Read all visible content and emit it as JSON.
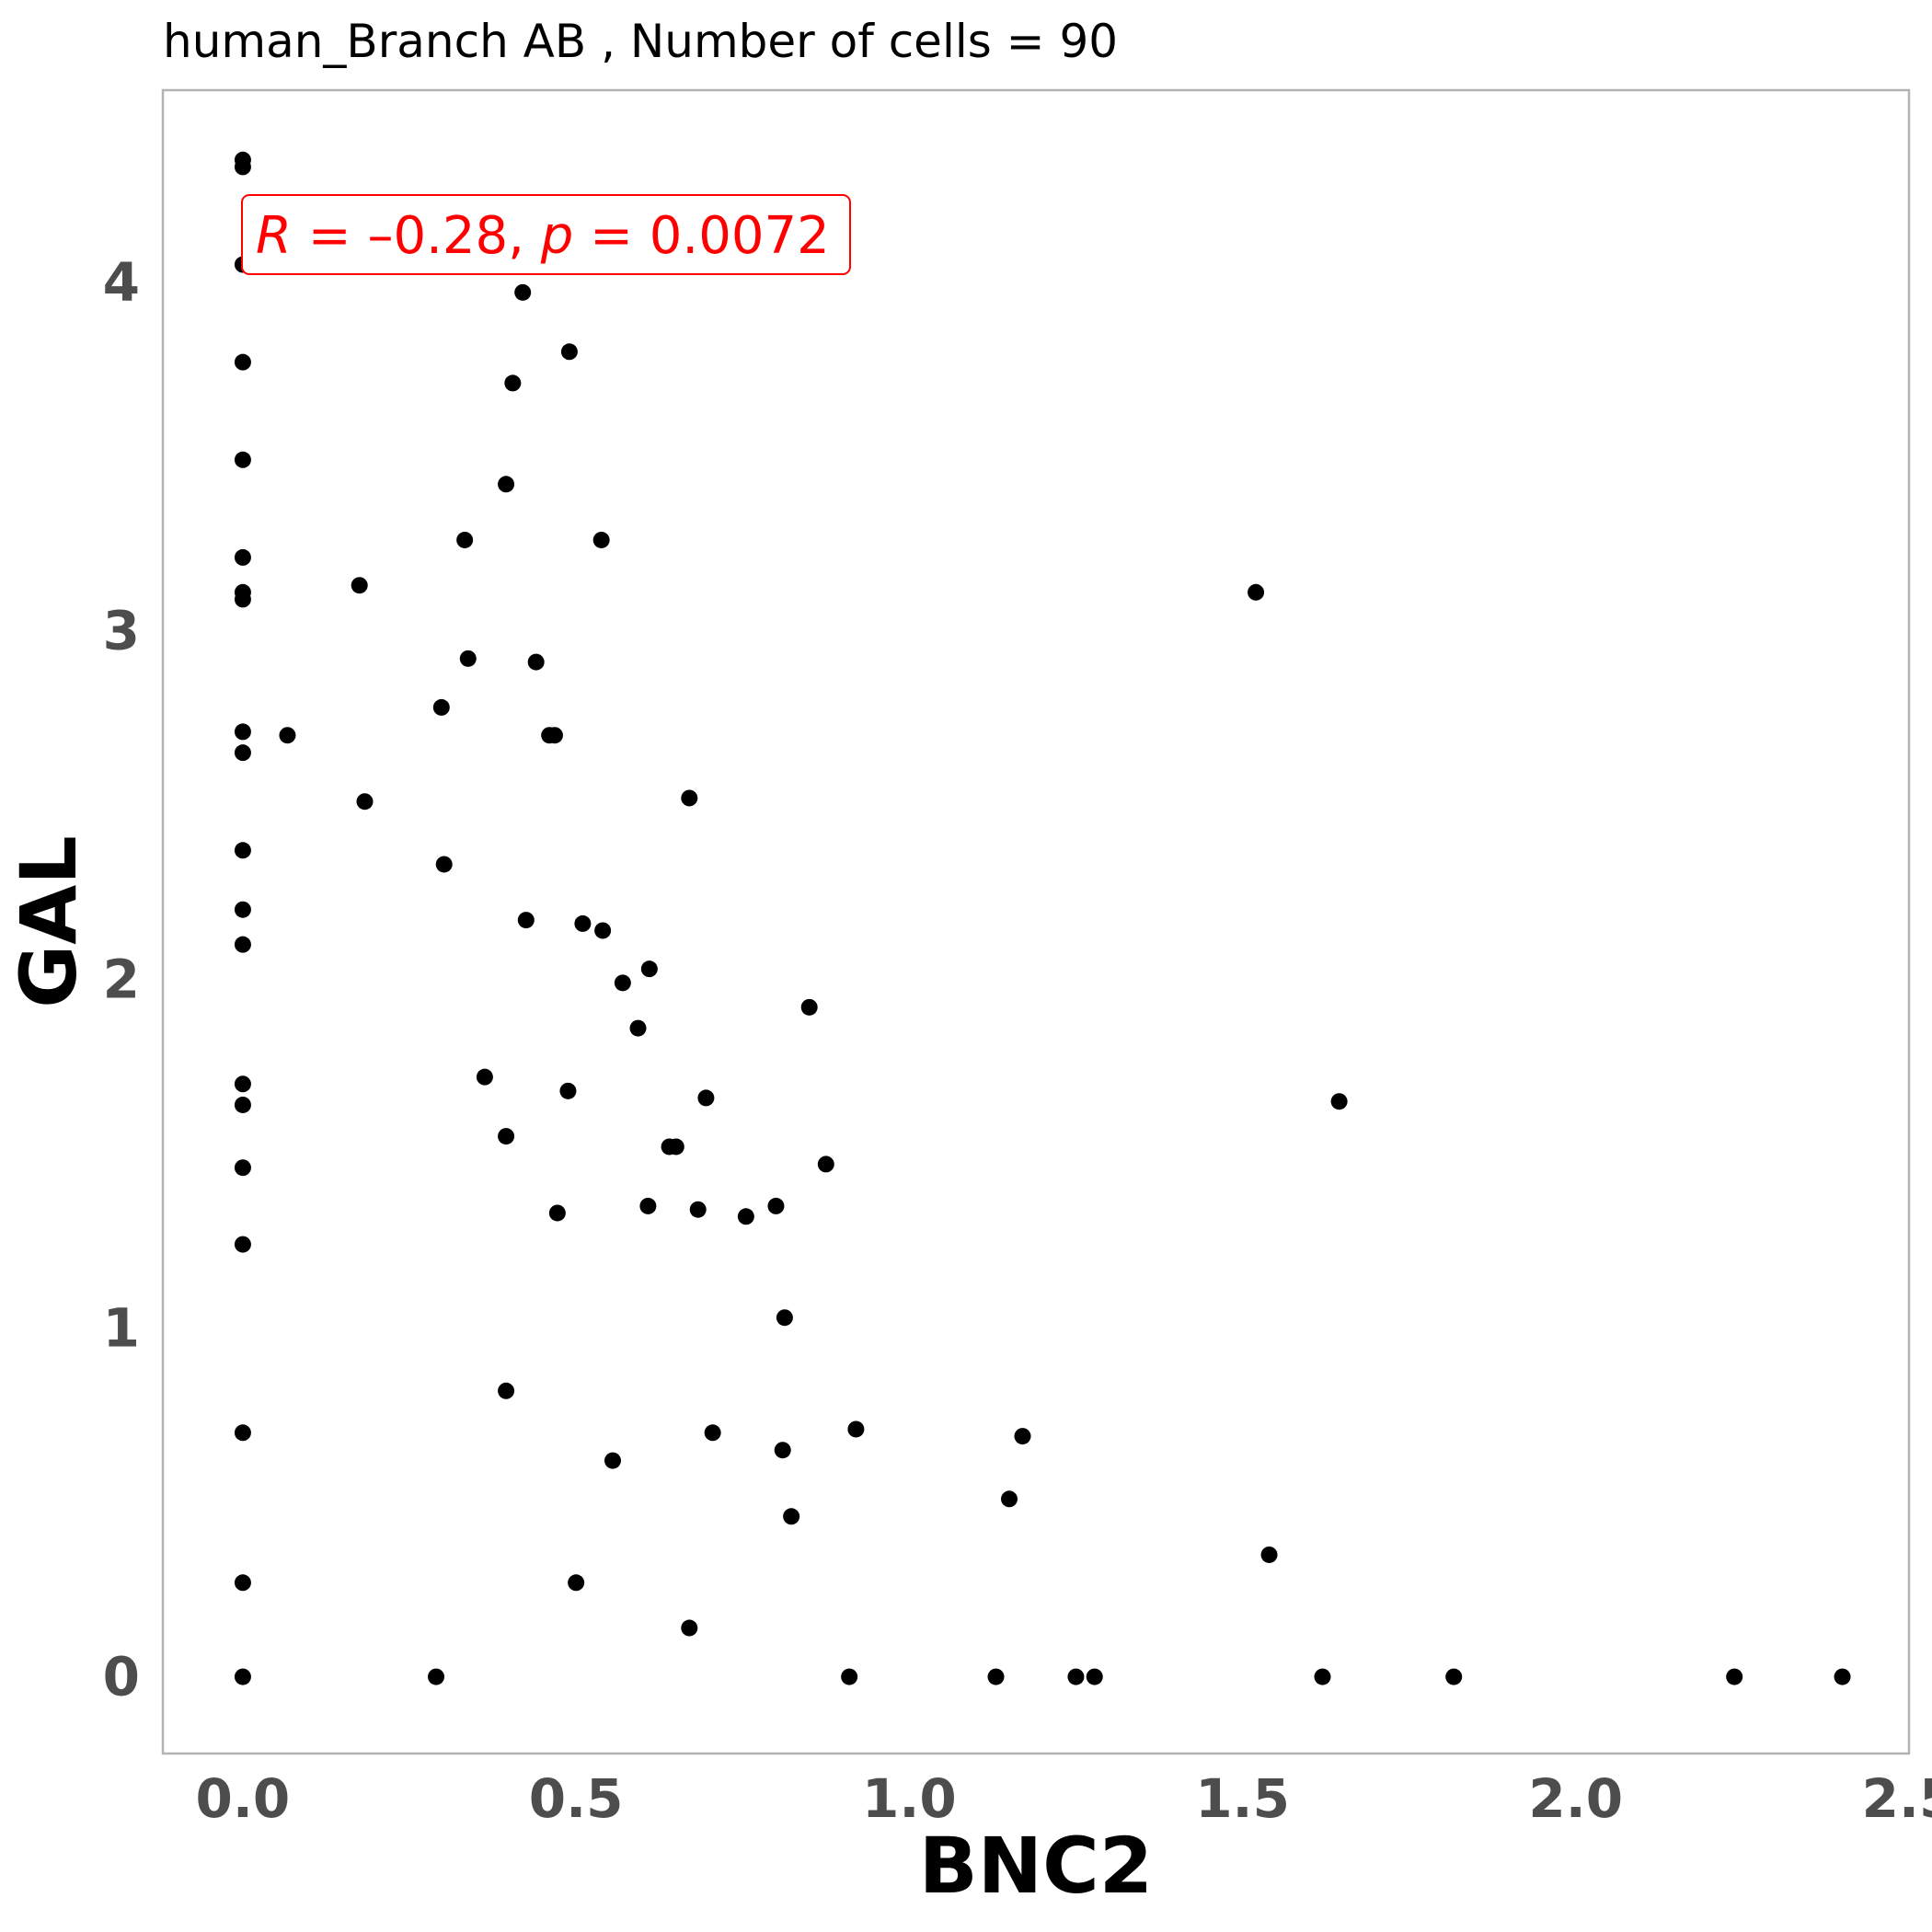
{
  "chart_data": {
    "type": "scatter",
    "title": "human_Branch AB , Number of cells =  90",
    "xlabel": "BNC2",
    "ylabel": "GAL",
    "xlim": [
      -0.12,
      2.5
    ],
    "ylim": [
      -0.22,
      4.55
    ],
    "xticks": [
      {
        "value": 0.0,
        "label": "0.0"
      },
      {
        "value": 0.5,
        "label": "0.5"
      },
      {
        "value": 1.0,
        "label": "1.0"
      },
      {
        "value": 1.5,
        "label": "1.5"
      },
      {
        "value": 2.0,
        "label": "2.0"
      },
      {
        "value": 2.5,
        "label": "2.5"
      }
    ],
    "yticks": [
      {
        "value": 0,
        "label": "0"
      },
      {
        "value": 1,
        "label": "1"
      },
      {
        "value": 2,
        "label": "2"
      },
      {
        "value": 3,
        "label": "3"
      },
      {
        "value": 4,
        "label": "4"
      }
    ],
    "grid": false,
    "annotation": {
      "r_symbol": "R",
      "r_value": " = –0.28, ",
      "p_symbol": "p",
      "p_value": " = 0.0072"
    },
    "colors": {
      "points": "#000000",
      "annotation": "#ff0000",
      "panel_border": "#b3b3b3",
      "tick_text": "#4d4d4d"
    },
    "points": [
      {
        "x": 0.0,
        "y": 4.35
      },
      {
        "x": 0.0,
        "y": 4.33
      },
      {
        "x": 0.0,
        "y": 4.05
      },
      {
        "x": 0.0,
        "y": 3.77
      },
      {
        "x": 0.0,
        "y": 3.49
      },
      {
        "x": 0.0,
        "y": 3.21
      },
      {
        "x": 0.0,
        "y": 3.11
      },
      {
        "x": 0.0,
        "y": 3.09
      },
      {
        "x": 0.0,
        "y": 2.71
      },
      {
        "x": 0.0,
        "y": 2.65
      },
      {
        "x": 0.0,
        "y": 2.37
      },
      {
        "x": 0.0,
        "y": 2.2
      },
      {
        "x": 0.0,
        "y": 2.1
      },
      {
        "x": 0.0,
        "y": 1.7
      },
      {
        "x": 0.0,
        "y": 1.64
      },
      {
        "x": 0.0,
        "y": 1.46
      },
      {
        "x": 0.0,
        "y": 1.24
      },
      {
        "x": 0.0,
        "y": 0.7
      },
      {
        "x": 0.0,
        "y": 0.27
      },
      {
        "x": 0.0,
        "y": 0.0
      },
      {
        "x": 0.067,
        "y": 2.7
      },
      {
        "x": 0.175,
        "y": 3.13
      },
      {
        "x": 0.183,
        "y": 2.51
      },
      {
        "x": 0.29,
        "y": 0.0
      },
      {
        "x": 0.298,
        "y": 2.78
      },
      {
        "x": 0.302,
        "y": 2.33
      },
      {
        "x": 0.333,
        "y": 3.26
      },
      {
        "x": 0.338,
        "y": 2.92
      },
      {
        "x": 0.363,
        "y": 1.72
      },
      {
        "x": 0.395,
        "y": 3.42
      },
      {
        "x": 0.395,
        "y": 1.55
      },
      {
        "x": 0.395,
        "y": 0.82
      },
      {
        "x": 0.405,
        "y": 3.71
      },
      {
        "x": 0.42,
        "y": 3.97
      },
      {
        "x": 0.425,
        "y": 2.17
      },
      {
        "x": 0.44,
        "y": 2.91
      },
      {
        "x": 0.46,
        "y": 2.7
      },
      {
        "x": 0.468,
        "y": 2.7
      },
      {
        "x": 0.472,
        "y": 1.33
      },
      {
        "x": 0.488,
        "y": 1.68
      },
      {
        "x": 0.49,
        "y": 3.8
      },
      {
        "x": 0.5,
        "y": 0.27
      },
      {
        "x": 0.51,
        "y": 2.16
      },
      {
        "x": 0.538,
        "y": 3.26
      },
      {
        "x": 0.54,
        "y": 2.14
      },
      {
        "x": 0.555,
        "y": 0.62
      },
      {
        "x": 0.57,
        "y": 1.99
      },
      {
        "x": 0.593,
        "y": 1.86
      },
      {
        "x": 0.608,
        "y": 1.35
      },
      {
        "x": 0.61,
        "y": 2.03
      },
      {
        "x": 0.64,
        "y": 1.52
      },
      {
        "x": 0.65,
        "y": 1.52
      },
      {
        "x": 0.67,
        "y": 2.52
      },
      {
        "x": 0.67,
        "y": 0.14
      },
      {
        "x": 0.683,
        "y": 1.34
      },
      {
        "x": 0.695,
        "y": 1.66
      },
      {
        "x": 0.705,
        "y": 0.7
      },
      {
        "x": 0.755,
        "y": 1.32
      },
      {
        "x": 0.8,
        "y": 1.35
      },
      {
        "x": 0.81,
        "y": 0.65
      },
      {
        "x": 0.813,
        "y": 1.03
      },
      {
        "x": 0.823,
        "y": 0.46
      },
      {
        "x": 0.85,
        "y": 1.92
      },
      {
        "x": 0.875,
        "y": 1.47
      },
      {
        "x": 0.91,
        "y": 0.0
      },
      {
        "x": 0.92,
        "y": 0.71
      },
      {
        "x": 1.13,
        "y": 0.0
      },
      {
        "x": 1.15,
        "y": 0.51
      },
      {
        "x": 1.17,
        "y": 0.69
      },
      {
        "x": 1.25,
        "y": 0.0
      },
      {
        "x": 1.278,
        "y": 0.0
      },
      {
        "x": 1.52,
        "y": 3.11
      },
      {
        "x": 1.54,
        "y": 0.35
      },
      {
        "x": 1.62,
        "y": 0.0
      },
      {
        "x": 1.645,
        "y": 1.65
      },
      {
        "x": 1.817,
        "y": 0.0
      },
      {
        "x": 2.238,
        "y": 0.0
      },
      {
        "x": 2.4,
        "y": 0.0
      }
    ]
  }
}
